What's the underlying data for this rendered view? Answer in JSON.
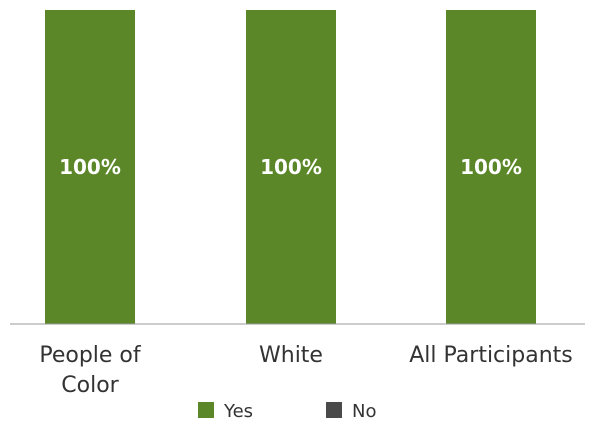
{
  "chart_data": {
    "type": "bar",
    "stacked": true,
    "categories": [
      [
        "People of",
        "Color"
      ],
      [
        "White"
      ],
      [
        "All Participants"
      ]
    ],
    "series": [
      {
        "name": "Yes",
        "values": [
          100,
          100,
          100
        ],
        "color": "#5b8728"
      },
      {
        "name": "No",
        "values": [
          0,
          0,
          0
        ],
        "color": "#4a4a4a"
      }
    ],
    "data_labels": [
      "100%",
      "100%",
      "100%"
    ],
    "ylim": [
      0,
      100
    ],
    "unit": "%",
    "grid": false,
    "legend_position": "bottom"
  }
}
